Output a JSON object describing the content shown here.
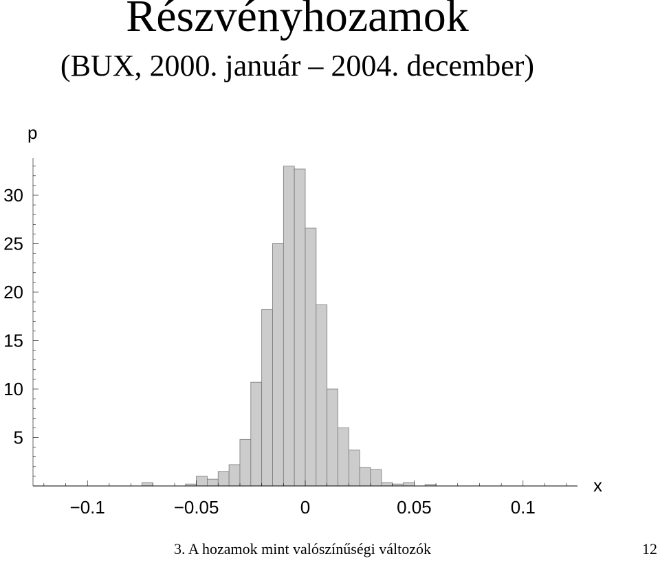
{
  "slide": {
    "title": "Részvényhozamok",
    "subtitle": "(BUX, 2000. január – 2004. december)",
    "footer": "3. A hozamok mint valószínűségi változók",
    "page_number": "12"
  },
  "chart_data": {
    "type": "bar",
    "title": "Részvényhozamok",
    "subtitle": "(BUX, 2000. január – 2004. december)",
    "xlabel": "x",
    "ylabel": "p",
    "xlim": [
      -0.125,
      0.125
    ],
    "ylim": [
      0,
      33.5
    ],
    "bin_width": 0.005,
    "x_ticks": [
      "−0.1",
      "−0.05",
      "0",
      "0.05",
      "0.1"
    ],
    "x_tick_values": [
      -0.1,
      -0.05,
      0,
      0.05,
      0.1
    ],
    "y_ticks": [
      "5",
      "10",
      "15",
      "20",
      "25",
      "30"
    ],
    "y_tick_values": [
      5,
      10,
      15,
      20,
      25,
      30
    ],
    "bins": [
      {
        "x0": -0.075,
        "x1": -0.07,
        "p": 0.35
      },
      {
        "x0": -0.055,
        "x1": -0.05,
        "p": 0.2
      },
      {
        "x0": -0.05,
        "x1": -0.045,
        "p": 1.0
      },
      {
        "x0": -0.045,
        "x1": -0.04,
        "p": 0.7
      },
      {
        "x0": -0.04,
        "x1": -0.035,
        "p": 1.5
      },
      {
        "x0": -0.035,
        "x1": -0.03,
        "p": 2.2
      },
      {
        "x0": -0.03,
        "x1": -0.025,
        "p": 4.8
      },
      {
        "x0": -0.025,
        "x1": -0.02,
        "p": 10.7
      },
      {
        "x0": -0.02,
        "x1": -0.015,
        "p": 18.2
      },
      {
        "x0": -0.015,
        "x1": -0.01,
        "p": 25.0
      },
      {
        "x0": -0.01,
        "x1": -0.005,
        "p": 33.0
      },
      {
        "x0": -0.005,
        "x1": 0.0,
        "p": 32.7
      },
      {
        "x0": 0.0,
        "x1": 0.005,
        "p": 26.6
      },
      {
        "x0": 0.005,
        "x1": 0.01,
        "p": 18.7
      },
      {
        "x0": 0.01,
        "x1": 0.015,
        "p": 10.0
      },
      {
        "x0": 0.015,
        "x1": 0.02,
        "p": 6.0
      },
      {
        "x0": 0.02,
        "x1": 0.025,
        "p": 3.7
      },
      {
        "x0": 0.025,
        "x1": 0.03,
        "p": 1.9
      },
      {
        "x0": 0.03,
        "x1": 0.035,
        "p": 1.7
      },
      {
        "x0": 0.035,
        "x1": 0.04,
        "p": 0.35
      },
      {
        "x0": 0.04,
        "x1": 0.045,
        "p": 0.2
      },
      {
        "x0": 0.045,
        "x1": 0.05,
        "p": 0.35
      },
      {
        "x0": 0.055,
        "x1": 0.06,
        "p": 0.15
      }
    ],
    "bar_color": "#cccccc",
    "bar_edge_color": "#777777",
    "grid": false
  }
}
